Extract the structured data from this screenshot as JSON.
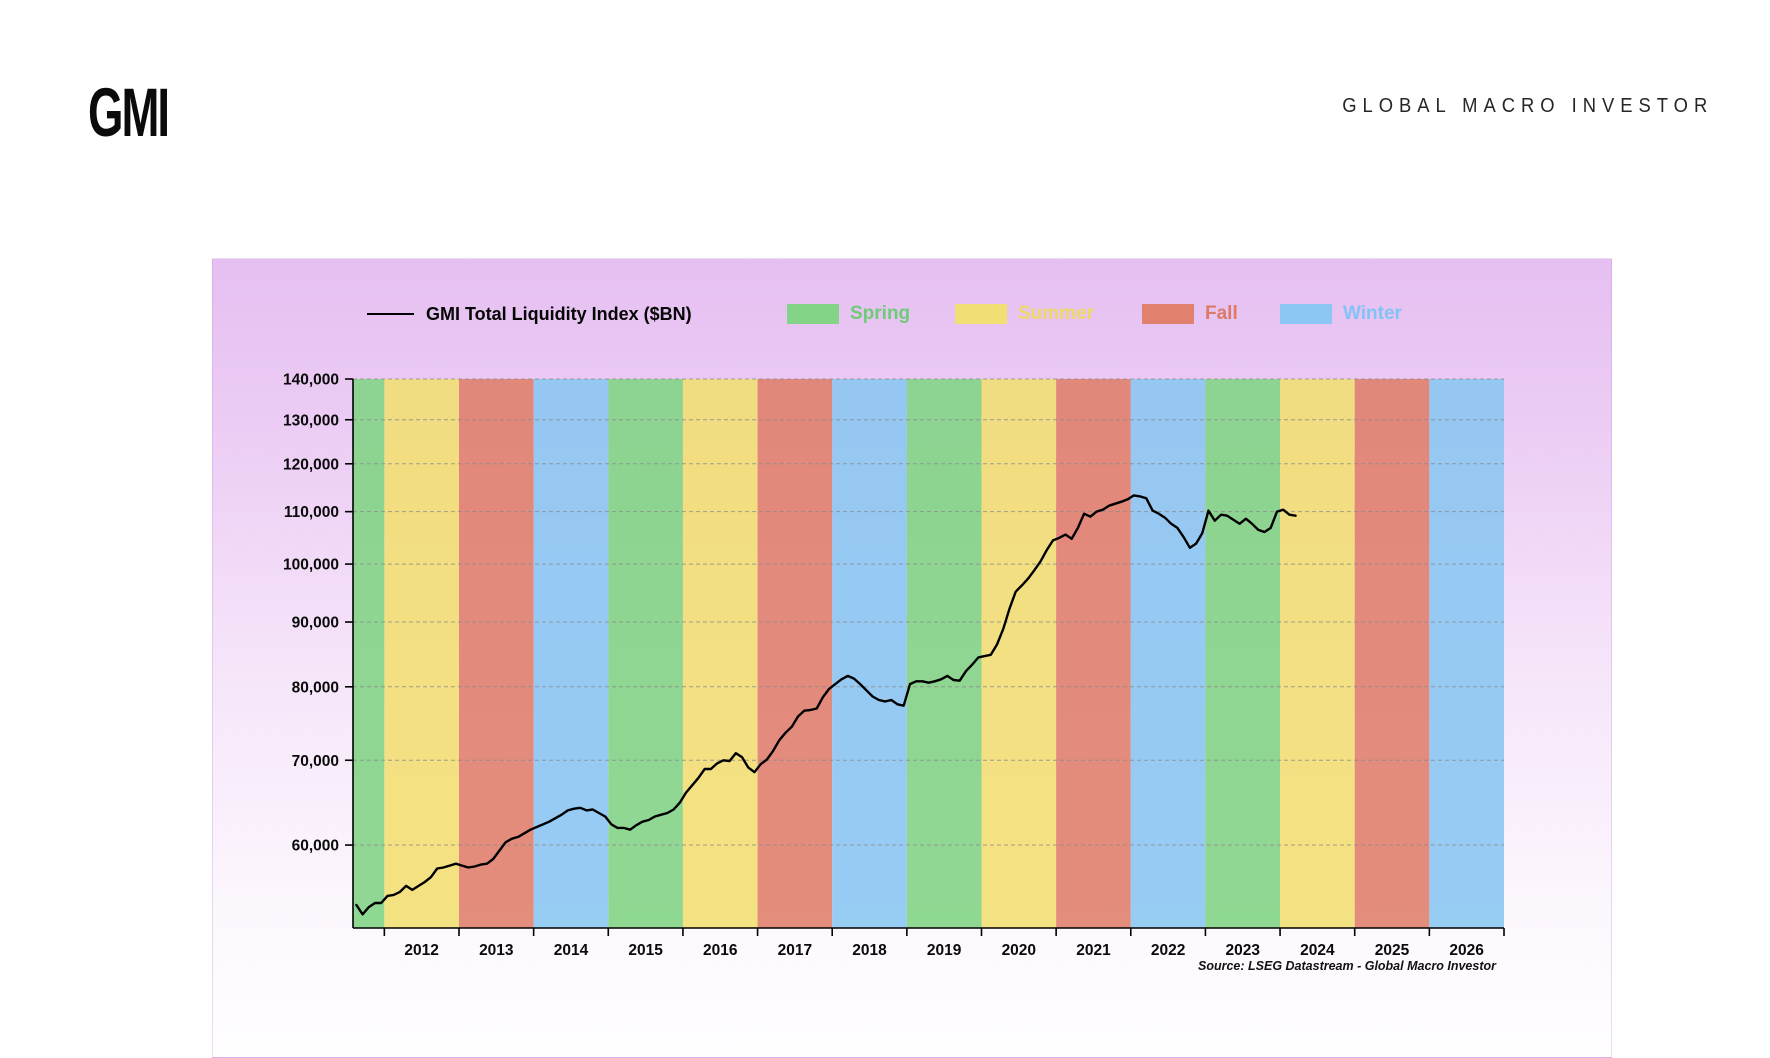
{
  "header": {
    "logo_text": "GMI",
    "brand_text": "GLOBAL MACRO INVESTOR"
  },
  "chart_data": {
    "type": "line",
    "title": "GMI Total Liquidity Index ($BN)",
    "source_note": "Source: LSEG Datastream - Global Macro Investor",
    "y_scale": "log",
    "grid": true,
    "y_ticks": [
      60000,
      70000,
      80000,
      90000,
      100000,
      110000,
      120000,
      130000,
      140000
    ],
    "y_tick_labels": [
      "60,000",
      "70,000",
      "80,000",
      "90,000",
      "100,000",
      "110,000",
      "120,000",
      "130,000",
      "140,000"
    ],
    "ylim": [
      51600,
      140000
    ],
    "xlim": [
      2011.58,
      2027.0
    ],
    "x_tick_years": [
      2012,
      2013,
      2014,
      2015,
      2016,
      2017,
      2018,
      2019,
      2020,
      2021,
      2022,
      2023,
      2024,
      2025,
      2026,
      2027
    ],
    "x_labels": [
      "2012",
      "2013",
      "2014",
      "2015",
      "2016",
      "2017",
      "2018",
      "2019",
      "2020",
      "2021",
      "2022",
      "2023",
      "2024",
      "2025",
      "2026"
    ],
    "legend": [
      {
        "label": "GMI Total Liquidity Index ($BN)",
        "type": "line",
        "color": "#000000",
        "text_color": "#060606"
      },
      {
        "label": "Spring",
        "type": "swatch",
        "color": "#83d486",
        "text_color": "#6ecb78"
      },
      {
        "label": "Summer",
        "type": "swatch",
        "color": "#f2df74",
        "text_color": "#ecd964"
      },
      {
        "label": "Fall",
        "type": "swatch",
        "color": "#e0816e",
        "text_color": "#dc7a66"
      },
      {
        "label": "Winter",
        "type": "swatch",
        "color": "#8cc6f2",
        "text_color": "#82c3f4"
      }
    ],
    "season_colors": {
      "Spring": "#83d486",
      "Summer": "#f2df74",
      "Fall": "#e0816e",
      "Winter": "#8cc6f2"
    },
    "bands": [
      {
        "season": "Spring",
        "from": 2011.58,
        "to": 2012
      },
      {
        "season": "Summer",
        "from": 2012,
        "to": 2013
      },
      {
        "season": "Fall",
        "from": 2013,
        "to": 2014
      },
      {
        "season": "Winter",
        "from": 2014,
        "to": 2015
      },
      {
        "season": "Spring",
        "from": 2015,
        "to": 2016
      },
      {
        "season": "Summer",
        "from": 2016,
        "to": 2017
      },
      {
        "season": "Fall",
        "from": 2017,
        "to": 2018
      },
      {
        "season": "Winter",
        "from": 2018,
        "to": 2019
      },
      {
        "season": "Spring",
        "from": 2019,
        "to": 2020
      },
      {
        "season": "Summer",
        "from": 2020,
        "to": 2021
      },
      {
        "season": "Fall",
        "from": 2021,
        "to": 2022
      },
      {
        "season": "Winter",
        "from": 2022,
        "to": 2023
      },
      {
        "season": "Spring",
        "from": 2023,
        "to": 2024
      },
      {
        "season": "Summer",
        "from": 2024,
        "to": 2025
      },
      {
        "season": "Fall",
        "from": 2025,
        "to": 2026
      },
      {
        "season": "Winter",
        "from": 2026,
        "to": 2027
      }
    ],
    "series": [
      {
        "name": "GMI Total Liquidity Index ($BN)",
        "color": "#000000",
        "interval": "monthly",
        "start_year": 2011,
        "start_month": 8,
        "values": [
          53800,
          52900,
          53600,
          54000,
          54000,
          54700,
          54800,
          55100,
          55700,
          55300,
          55700,
          56100,
          56600,
          57500,
          57600,
          57800,
          58000,
          57800,
          57600,
          57700,
          57900,
          58000,
          58500,
          59400,
          60300,
          60700,
          60900,
          61300,
          61700,
          62000,
          62300,
          62600,
          63000,
          63400,
          63900,
          64100,
          64200,
          63900,
          64000,
          63600,
          63200,
          62300,
          61900,
          61900,
          61700,
          62200,
          62600,
          62800,
          63200,
          63400,
          63600,
          64000,
          64800,
          66000,
          66900,
          67800,
          68900,
          68900,
          69600,
          70000,
          69900,
          70900,
          70400,
          69100,
          68500,
          69500,
          70100,
          71200,
          72600,
          73600,
          74400,
          75800,
          76600,
          76700,
          76900,
          78500,
          79700,
          80400,
          81100,
          81600,
          81200,
          80400,
          79500,
          78600,
          78100,
          77900,
          78100,
          77500,
          77300,
          80400,
          80800,
          80800,
          80600,
          80800,
          81100,
          81600,
          81000,
          80900,
          82300,
          83300,
          84400,
          84600,
          84800,
          86400,
          88900,
          92200,
          95100,
          96200,
          97400,
          98900,
          100500,
          102600,
          104400,
          104900,
          105500,
          104700,
          106800,
          109600,
          109000,
          110000,
          110400,
          111200,
          111600,
          112000,
          112500,
          113300,
          113100,
          112700,
          110200,
          109600,
          108800,
          107600,
          106800,
          105000,
          103000,
          103800,
          105800,
          110200,
          108200,
          109400,
          109200,
          108400,
          107600,
          108600,
          107600,
          106400,
          106000,
          106800,
          110000,
          110400,
          109400,
          109200
        ]
      }
    ]
  }
}
